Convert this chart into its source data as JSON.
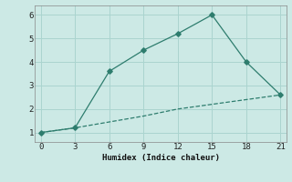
{
  "line1_x": [
    0,
    3,
    6,
    9,
    12,
    15,
    18,
    21
  ],
  "line1_y": [
    1.0,
    1.2,
    1.45,
    1.7,
    2.0,
    2.2,
    2.4,
    2.6
  ],
  "line2_x": [
    0,
    3,
    6,
    9,
    12,
    15,
    18,
    21
  ],
  "line2_y": [
    1.0,
    1.2,
    3.6,
    4.5,
    5.2,
    6.0,
    4.0,
    2.6
  ],
  "color": "#2e7d6e",
  "xlabel": "Humidex (Indice chaleur)",
  "xlim": [
    -0.5,
    21.5
  ],
  "ylim": [
    0.6,
    6.4
  ],
  "xticks": [
    0,
    3,
    6,
    9,
    12,
    15,
    18,
    21
  ],
  "yticks": [
    1,
    2,
    3,
    4,
    5,
    6
  ],
  "background_color": "#cce9e5",
  "grid_color": "#aad4cf"
}
